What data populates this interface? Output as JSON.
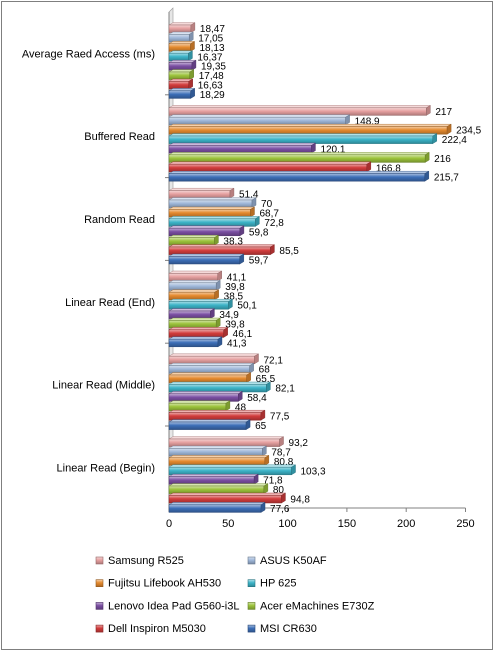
{
  "chart_data": {
    "type": "bar",
    "orientation": "horizontal",
    "xlim": [
      0,
      250
    ],
    "xticks": [
      0,
      50,
      100,
      150,
      200,
      250
    ],
    "grid": false,
    "legend_position": "bottom",
    "categories": [
      "Average Raed Access (ms)",
      "Buffered Read",
      "Random Read",
      "Linear Read (End)",
      "Linear Read (Middle)",
      "Linear Read (Begin)"
    ],
    "series": [
      {
        "name": "Samsung R525",
        "color": "#e6a0a0",
        "values": [
          18.47,
          217,
          51.4,
          41.1,
          72.1,
          93.2
        ],
        "labels": [
          "18,47",
          "217",
          "51,4",
          "41,1",
          "72,1",
          "93,2"
        ]
      },
      {
        "name": "ASUS K50AF",
        "color": "#9fb7d9",
        "values": [
          17.05,
          148.9,
          70,
          39.8,
          68,
          78.7
        ],
        "labels": [
          "17,05",
          "148,9",
          "70",
          "39,8",
          "68",
          "78,7"
        ]
      },
      {
        "name": "Fujitsu Lifebook AH530",
        "color": "#e58a2e",
        "values": [
          18.13,
          234.5,
          68.7,
          38.5,
          65.5,
          80.8
        ],
        "labels": [
          "18,13",
          "234,5",
          "68,7",
          "38,5",
          "65,5",
          "80,8"
        ]
      },
      {
        "name": "HP 625",
        "color": "#3cb4c8",
        "values": [
          16.37,
          222.4,
          72.8,
          50.1,
          82.1,
          103.3
        ],
        "labels": [
          "16,37",
          "222,4",
          "72,8",
          "50,1",
          "82,1",
          "103,3"
        ]
      },
      {
        "name": "Lenovo Idea Pad G560-i3L",
        "color": "#7b4fa3",
        "values": [
          19.35,
          120.1,
          59.8,
          34.9,
          58.4,
          71.8
        ],
        "labels": [
          "19,35",
          "120,1",
          "59,8",
          "34,9",
          "58,4",
          "71,8"
        ]
      },
      {
        "name": "Acer eMachines E730Z",
        "color": "#9cc33b",
        "values": [
          17.48,
          216,
          38.3,
          39.8,
          48,
          80
        ],
        "labels": [
          "17,48",
          "216",
          "38,3",
          "39,8",
          "48",
          "80"
        ]
      },
      {
        "name": "Dell Inspiron M5030",
        "color": "#d23c3c",
        "values": [
          16.63,
          166.8,
          85.5,
          46.1,
          77.5,
          94.8
        ],
        "labels": [
          "16,63",
          "166,8",
          "85,5",
          "46,1",
          "77,5",
          "94,8"
        ]
      },
      {
        "name": "MSI CR630",
        "color": "#3d6fb8",
        "values": [
          18.29,
          215.7,
          59.7,
          41.3,
          65,
          77.6
        ],
        "labels": [
          "18,29",
          "215,7",
          "59,7",
          "41,3",
          "65",
          "77,6"
        ]
      }
    ]
  }
}
